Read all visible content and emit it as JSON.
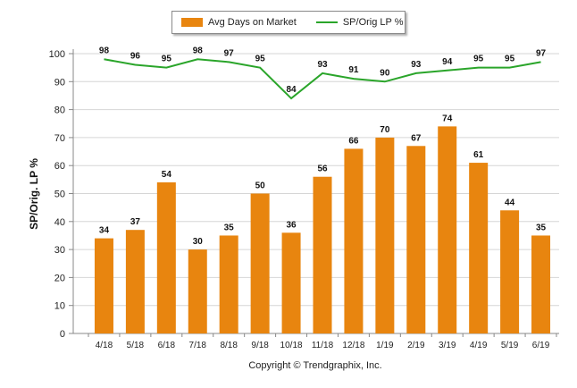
{
  "chart_data": {
    "type": "bar",
    "categories": [
      "4/18",
      "5/18",
      "6/18",
      "7/18",
      "8/18",
      "9/18",
      "10/18",
      "11/18",
      "12/18",
      "1/19",
      "2/19",
      "3/19",
      "4/19",
      "5/19",
      "6/19"
    ],
    "series": [
      {
        "name": "Avg Days on Market",
        "kind": "bar",
        "color": "#e8850f",
        "values": [
          34,
          37,
          54,
          30,
          35,
          50,
          36,
          56,
          66,
          70,
          67,
          74,
          61,
          44,
          35
        ]
      },
      {
        "name": "SP/Orig LP %",
        "kind": "line",
        "color": "#2aa52a",
        "values": [
          98,
          96,
          95,
          98,
          97,
          95,
          84,
          93,
          91,
          90,
          93,
          94,
          95,
          95,
          97
        ]
      }
    ],
    "ylabel": "SP/Orig. LP %",
    "ylim": [
      0,
      100
    ],
    "yticks": [
      0,
      10,
      20,
      30,
      40,
      50,
      60,
      70,
      80,
      90,
      100
    ],
    "grid": true,
    "legend_position": "top"
  },
  "footer": {
    "text": "Copyright © Trendgraphix, Inc."
  }
}
